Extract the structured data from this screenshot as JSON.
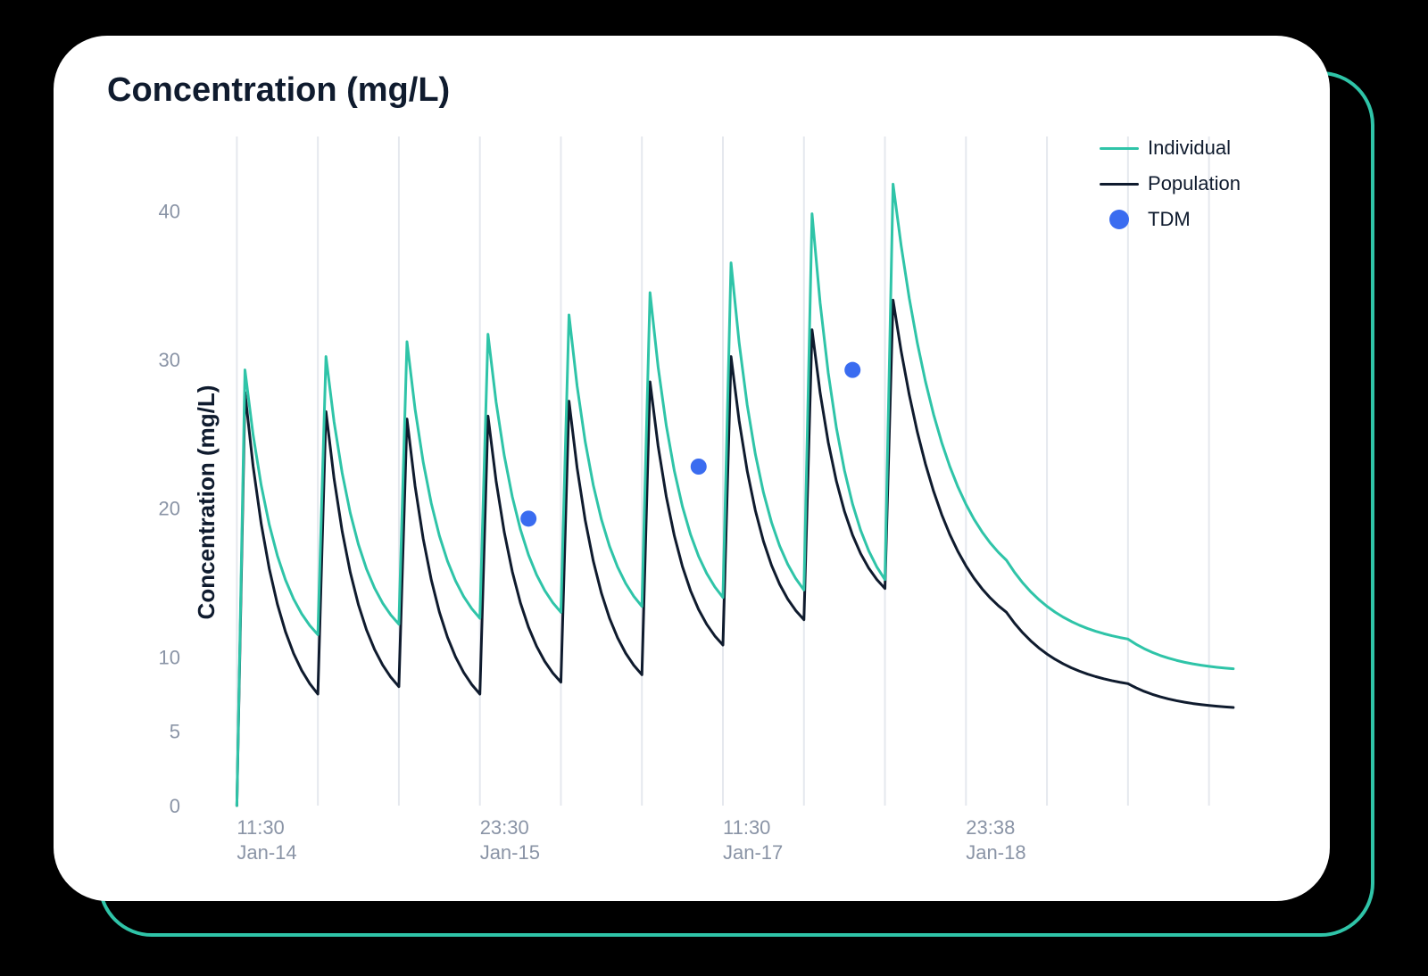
{
  "chart": {
    "type": "line",
    "title": "Concentration (mg/L)",
    "y_axis_label": "Concentration (mg/L)",
    "background_color": "#ffffff",
    "grid_color": "#e5e8ee",
    "accent_border_color": "#2fc4a8",
    "tick_label_color": "#8a94a6",
    "title_color": "#0f1b2e",
    "title_fontsize_pt": 28,
    "label_fontsize_pt": 20,
    "tick_fontsize_pt": 16,
    "line_width": 3,
    "ylim": [
      0,
      45
    ],
    "y_ticks": [
      0,
      5,
      10,
      20,
      30,
      40
    ],
    "x_range": [
      0,
      130
    ],
    "x_grid_positions": [
      5,
      15,
      25,
      35,
      45,
      55,
      65,
      75,
      85,
      95,
      105,
      115,
      125
    ],
    "x_tick_labels": [
      {
        "pos": 5,
        "time": "11:30",
        "date": "Jan-14"
      },
      {
        "pos": 35,
        "time": "23:30",
        "date": "Jan-15"
      },
      {
        "pos": 65,
        "time": "11:30",
        "date": "Jan-17"
      },
      {
        "pos": 95,
        "time": "23:38",
        "date": "Jan-18"
      }
    ],
    "legend": {
      "items": [
        {
          "key": "individual",
          "label": "Individual",
          "type": "line",
          "color": "#2fc4a8"
        },
        {
          "key": "population",
          "label": "Population",
          "type": "line",
          "color": "#0f1b2e"
        },
        {
          "key": "tdm",
          "label": "TDM",
          "type": "dot",
          "color": "#3a6cf0"
        }
      ]
    },
    "series": {
      "individual": {
        "color": "#2fc4a8",
        "points": [
          [
            5,
            0
          ],
          [
            6,
            29.3
          ],
          [
            15,
            11.5
          ],
          [
            16,
            30.2
          ],
          [
            25,
            12.2
          ],
          [
            26,
            31.2
          ],
          [
            35,
            12.6
          ],
          [
            36,
            31.7
          ],
          [
            45,
            13.0
          ],
          [
            46,
            33.0
          ],
          [
            55,
            13.4
          ],
          [
            56,
            34.5
          ],
          [
            65,
            14.0
          ],
          [
            66,
            36.5
          ],
          [
            75,
            14.5
          ],
          [
            76,
            39.8
          ],
          [
            85,
            15.2
          ],
          [
            86,
            41.8
          ],
          [
            100,
            16.5
          ],
          [
            115,
            11.2
          ],
          [
            128,
            9.2
          ]
        ]
      },
      "population": {
        "color": "#0f1b2e",
        "points": [
          [
            5,
            0
          ],
          [
            6,
            27.8
          ],
          [
            15,
            7.5
          ],
          [
            16,
            26.5
          ],
          [
            25,
            8.0
          ],
          [
            26,
            26.0
          ],
          [
            35,
            7.5
          ],
          [
            36,
            26.2
          ],
          [
            45,
            8.3
          ],
          [
            46,
            27.2
          ],
          [
            55,
            8.8
          ],
          [
            56,
            28.5
          ],
          [
            65,
            10.8
          ],
          [
            66,
            30.2
          ],
          [
            75,
            12.5
          ],
          [
            76,
            32.0
          ],
          [
            85,
            14.6
          ],
          [
            86,
            34.0
          ],
          [
            100,
            13.0
          ],
          [
            115,
            8.2
          ],
          [
            128,
            6.6
          ]
        ]
      }
    },
    "tdm_points": {
      "color": "#3a6cf0",
      "radius": 9,
      "data": [
        {
          "x": 41,
          "y": 19.3
        },
        {
          "x": 62,
          "y": 22.8
        },
        {
          "x": 81,
          "y": 29.3
        }
      ]
    }
  }
}
